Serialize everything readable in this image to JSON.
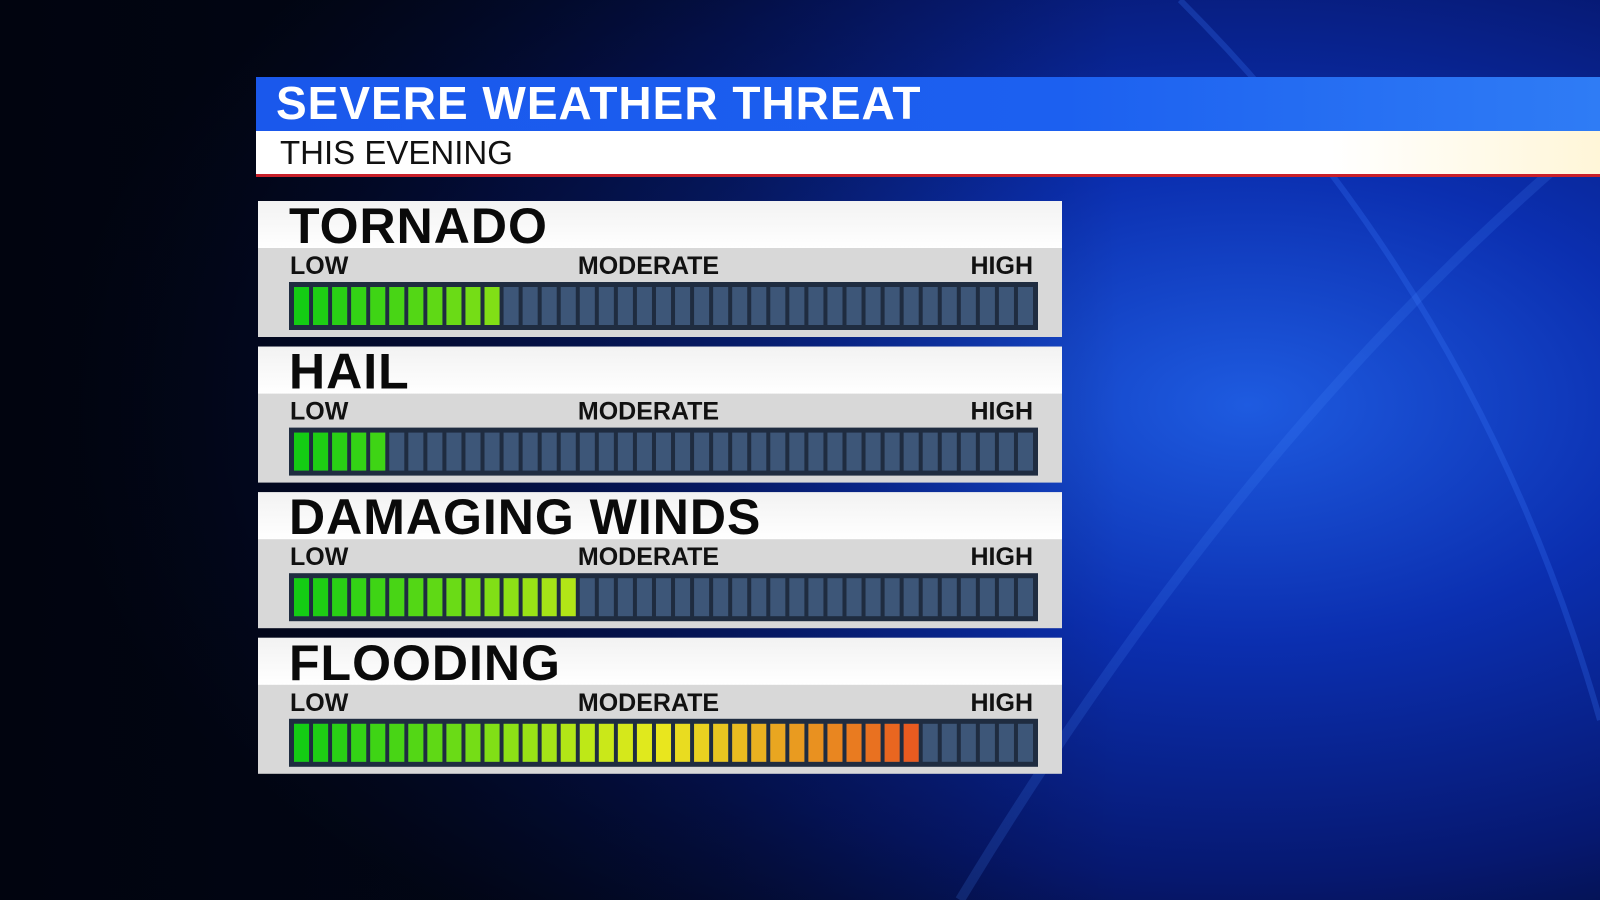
{
  "chart_data": {
    "type": "meter",
    "title": "SEVERE WEATHER THREAT",
    "subtitle": "THIS EVENING",
    "categories": [
      "TORNADO",
      "HAIL",
      "DAMAGING WINDS",
      "FLOODING"
    ],
    "values": [
      11,
      5,
      15,
      33
    ],
    "xlim": [
      0,
      39
    ],
    "xticks": [
      {
        "value": 0,
        "label": "LOW"
      },
      {
        "value": 19.5,
        "label": "MODERATE"
      },
      {
        "value": 39,
        "label": "HIGH"
      }
    ],
    "empty_color": "#3d5678"
  }
}
